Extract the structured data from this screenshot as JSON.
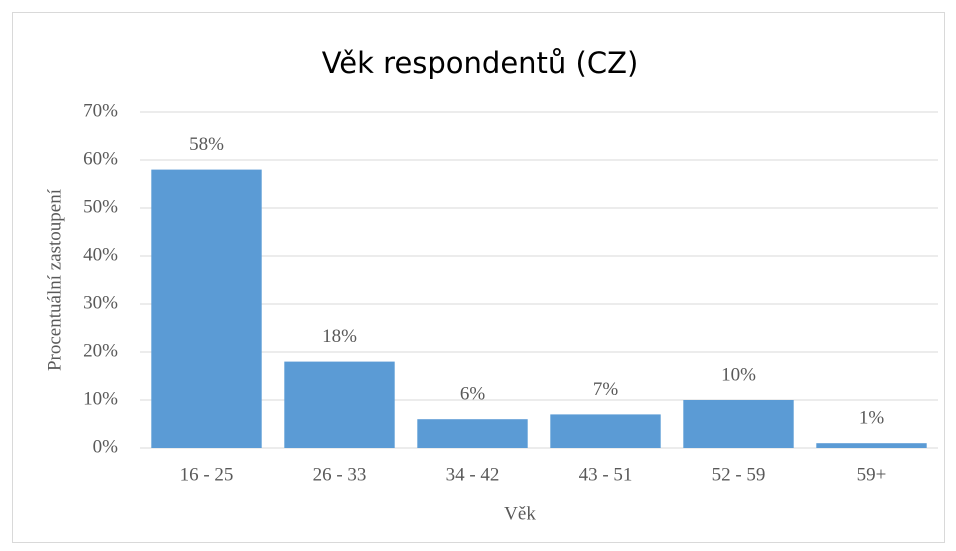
{
  "chart_data": {
    "type": "bar",
    "title": "Věk respondentů (CZ)",
    "x_label": "Věk",
    "y_label": "Procentuální zastoupení",
    "categories": [
      "16 - 25",
      "26 - 33",
      "34 - 42",
      "43 - 51",
      "52 - 59",
      "59+"
    ],
    "values": [
      58,
      18,
      6,
      7,
      10,
      1
    ],
    "value_labels": [
      "58%",
      "18%",
      "6%",
      "7%",
      "10%",
      "1%"
    ],
    "color": "#5b9bd5",
    "ylim": [
      0,
      70
    ],
    "yticks": [
      {
        "value": 0,
        "label": "0%"
      },
      {
        "value": 10,
        "label": "10%"
      },
      {
        "value": 20,
        "label": "20%"
      },
      {
        "value": 30,
        "label": "30%"
      },
      {
        "value": 40,
        "label": "40%"
      },
      {
        "value": 50,
        "label": "50%"
      },
      {
        "value": 60,
        "label": "60%"
      },
      {
        "value": 70,
        "label": "70%"
      }
    ],
    "grid": true
  }
}
